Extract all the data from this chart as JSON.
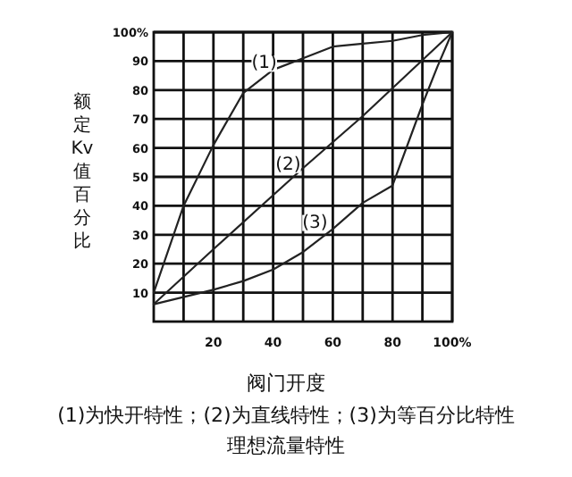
{
  "chart_data": {
    "type": "line",
    "xlabel": "阀门开度",
    "ylabel": "额定Kv值百分比",
    "xlim": [
      0,
      100
    ],
    "ylim": [
      0,
      100
    ],
    "xticks": [
      {
        "value": 10,
        "label": null
      },
      20,
      {
        "value": 30,
        "label": null
      },
      40,
      {
        "value": 50,
        "label": null
      },
      60,
      {
        "value": 70,
        "label": null
      },
      80,
      {
        "value": 90,
        "label": null
      },
      {
        "value": 100,
        "label": "100%"
      }
    ],
    "yticks": [
      10,
      20,
      30,
      40,
      50,
      60,
      70,
      80,
      90,
      {
        "value": 100,
        "label": "100%"
      }
    ],
    "grid": true,
    "marker": "none",
    "line_style": "solid",
    "series": [
      {
        "color": "#222222",
        "x": [
          0,
          10,
          20,
          30,
          40,
          50,
          60,
          70,
          80,
          90,
          100
        ],
        "values": [
          10,
          40,
          61,
          79,
          87,
          91,
          95,
          96,
          97,
          99,
          100
        ]
      },
      {
        "color": "#222222",
        "x": [
          0,
          20,
          50,
          70,
          100
        ],
        "values": [
          6,
          25,
          53,
          71,
          100
        ]
      },
      {
        "color": "#222222",
        "x": [
          0,
          20,
          30,
          40,
          50,
          60,
          70,
          80,
          90,
          95,
          100
        ],
        "values": [
          6,
          11,
          14,
          18,
          24,
          32,
          41,
          47,
          75,
          88,
          100
        ]
      }
    ],
    "annotations": [
      {
        "text": "(1)",
        "x": 37,
        "y": 90
      },
      {
        "text": "(2)",
        "x": 45,
        "y": 55
      },
      {
        "text": "(3)",
        "x": 54,
        "y": 35
      },
      "(1)为快开特性；(2)为直线特性；(3)为等百分比特性",
      "理想流量特性"
    ]
  }
}
